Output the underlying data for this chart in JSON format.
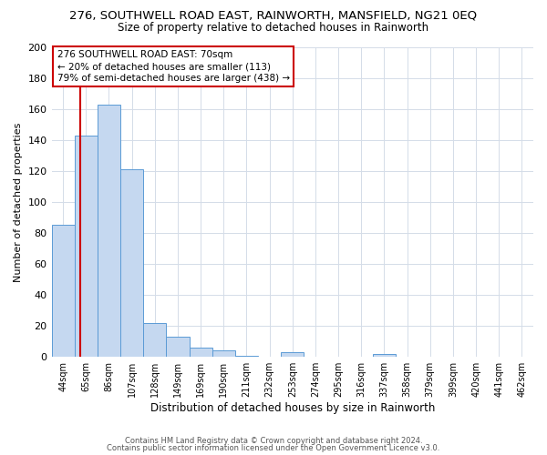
{
  "title": "276, SOUTHWELL ROAD EAST, RAINWORTH, MANSFIELD, NG21 0EQ",
  "subtitle": "Size of property relative to detached houses in Rainworth",
  "xlabel": "Distribution of detached houses by size in Rainworth",
  "ylabel": "Number of detached properties",
  "bin_labels": [
    "44sqm",
    "65sqm",
    "86sqm",
    "107sqm",
    "128sqm",
    "149sqm",
    "169sqm",
    "190sqm",
    "211sqm",
    "232sqm",
    "253sqm",
    "274sqm",
    "295sqm",
    "316sqm",
    "337sqm",
    "358sqm",
    "379sqm",
    "399sqm",
    "420sqm",
    "441sqm",
    "462sqm"
  ],
  "bin_values": [
    85,
    143,
    163,
    121,
    22,
    13,
    6,
    4,
    1,
    0,
    3,
    0,
    0,
    0,
    2,
    0,
    0,
    0,
    0,
    0,
    0
  ],
  "bar_color": "#c5d8f0",
  "bar_edge_color": "#5b9bd5",
  "red_line_x": 1.238,
  "property_label": "276 SOUTHWELL ROAD EAST: 70sqm",
  "annotation_line1": "← 20% of detached houses are smaller (113)",
  "annotation_line2": "79% of semi-detached houses are larger (438) →",
  "annotation_box_color": "#ffffff",
  "annotation_box_edge": "#cc0000",
  "red_line_color": "#cc0000",
  "ylim": [
    0,
    200
  ],
  "yticks": [
    0,
    20,
    40,
    60,
    80,
    100,
    120,
    140,
    160,
    180,
    200
  ],
  "footer_line1": "Contains HM Land Registry data © Crown copyright and database right 2024.",
  "footer_line2": "Contains public sector information licensed under the Open Government Licence v3.0.",
  "background_color": "#ffffff",
  "grid_color": "#d4dce8",
  "title_fontsize": 9.5,
  "subtitle_fontsize": 8.5,
  "ann_fontsize": 7.5,
  "ylabel_fontsize": 8,
  "xlabel_fontsize": 8.5
}
